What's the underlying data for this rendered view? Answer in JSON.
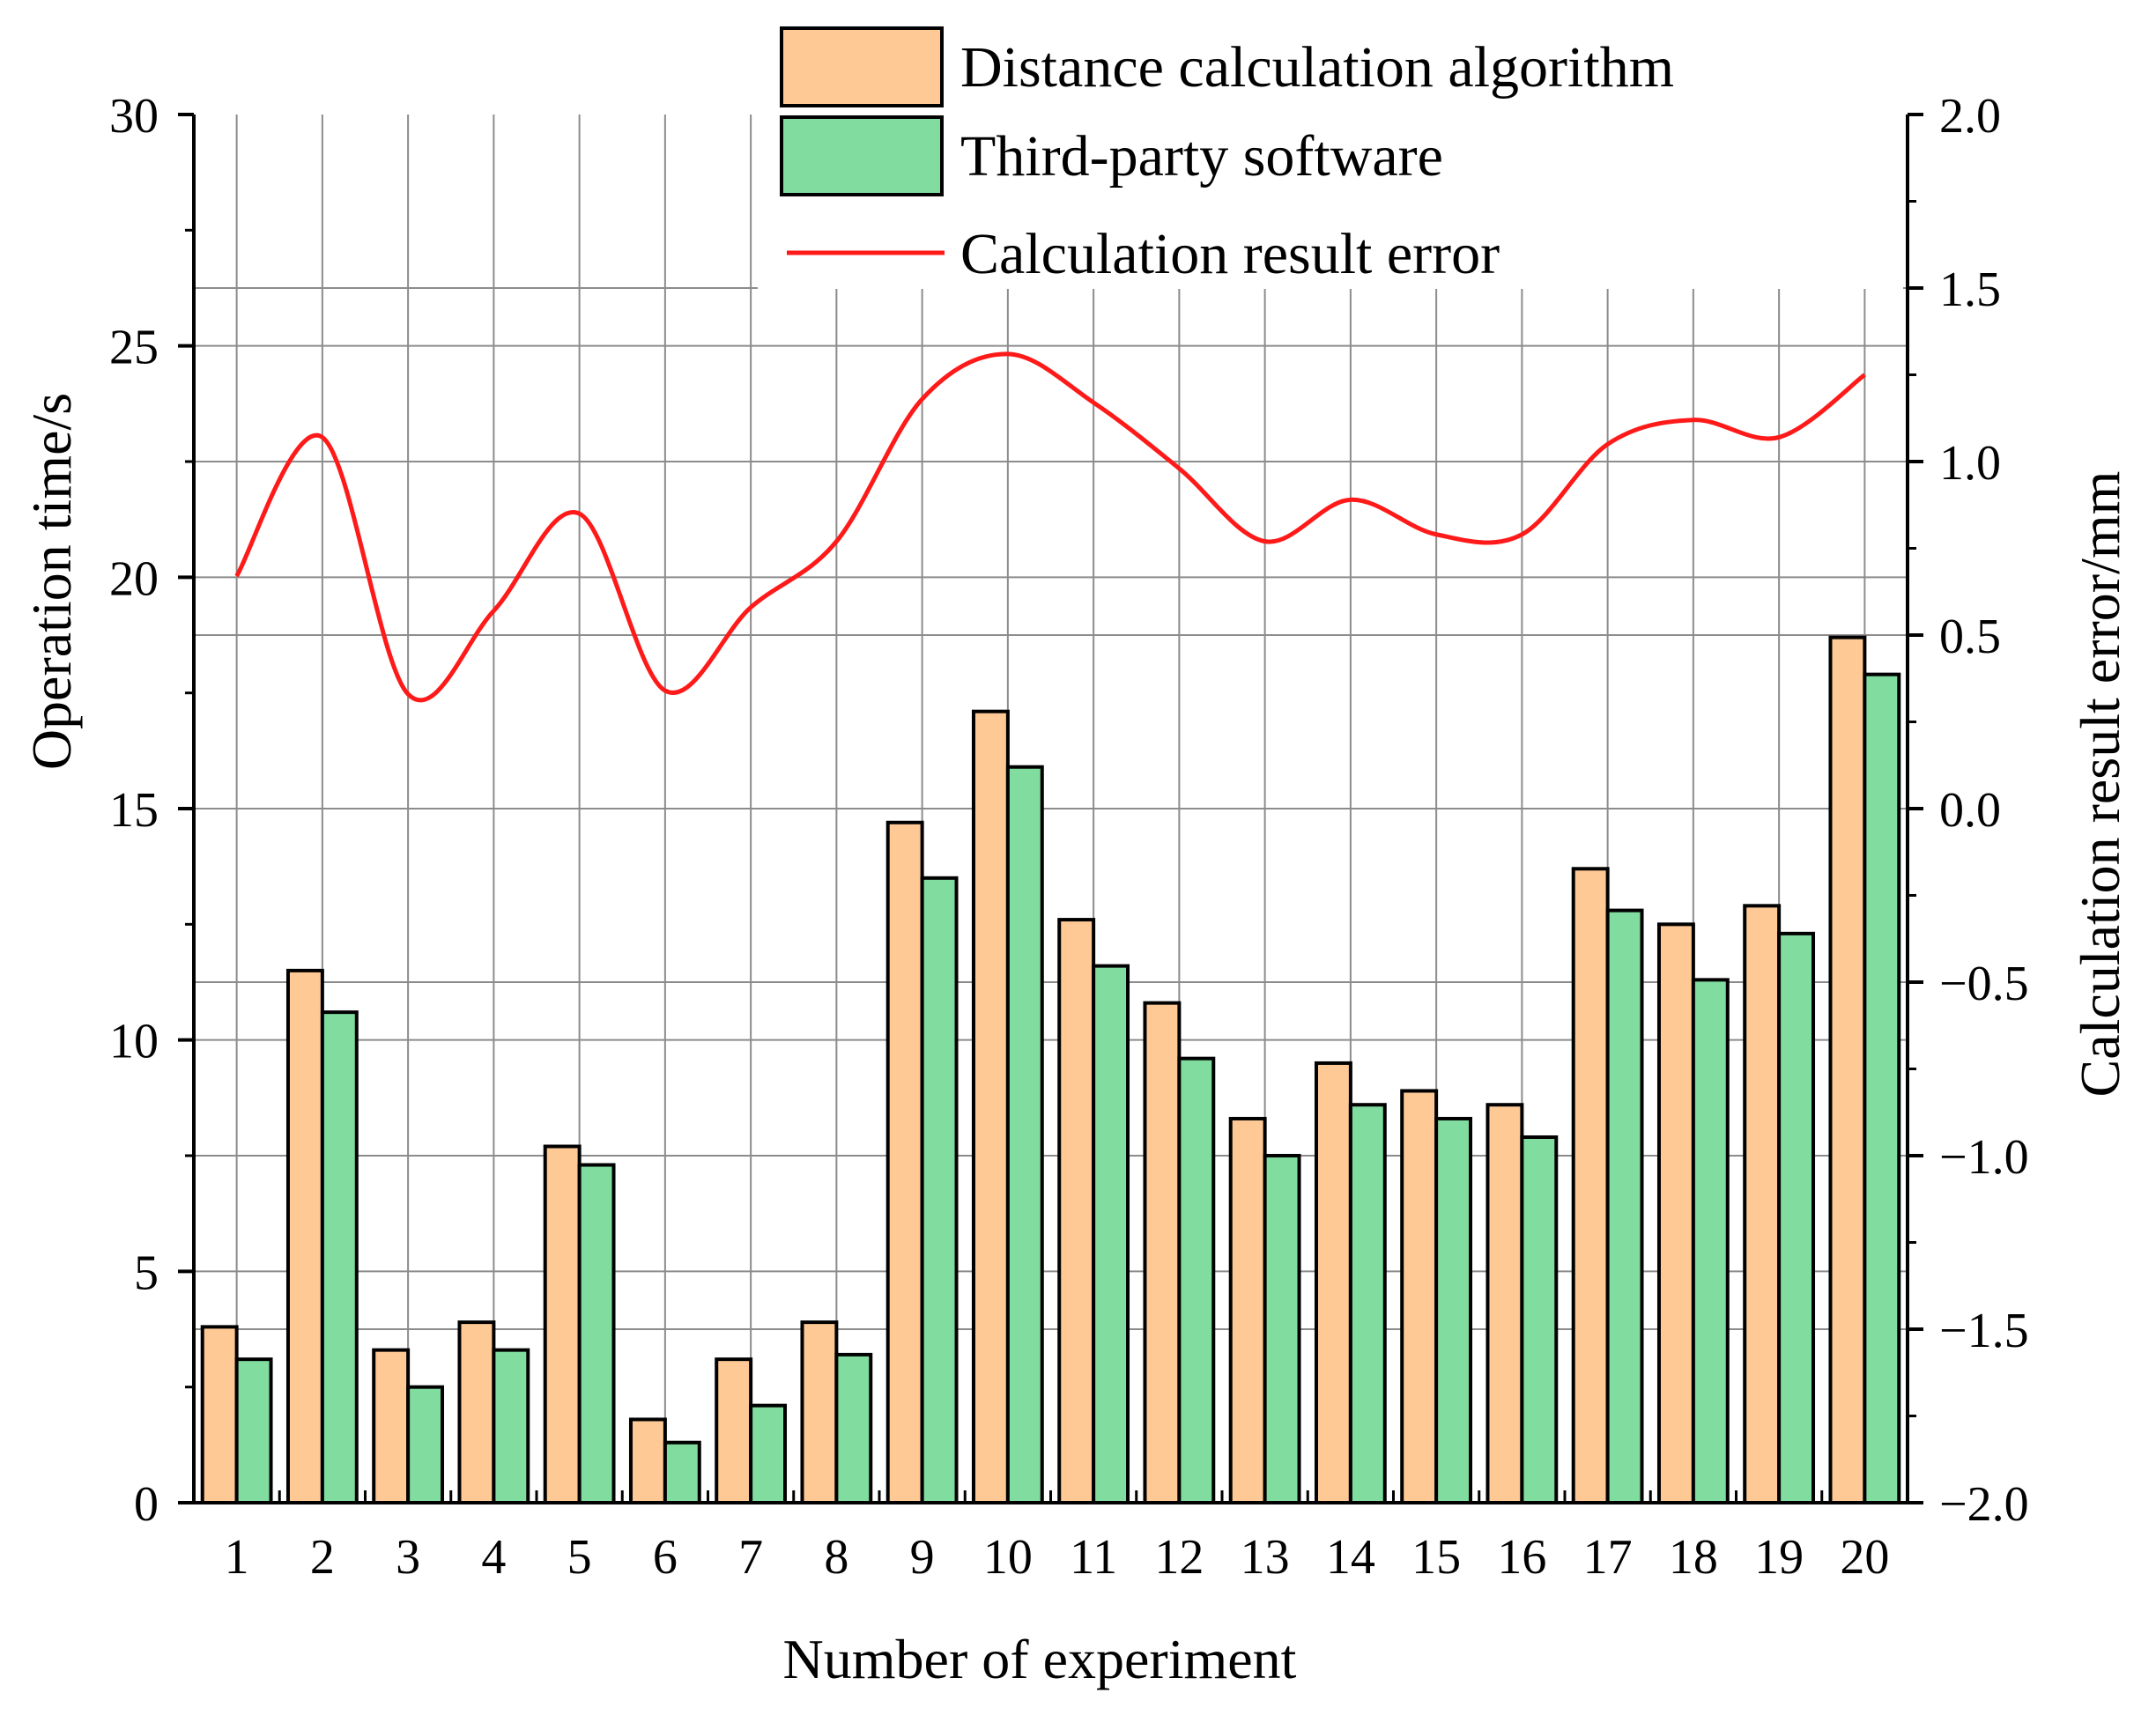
{
  "colors": {
    "series_a": "#FFC996",
    "series_b": "#80DC9F",
    "error_line": "#FF1A1A",
    "grid": "#8C8C8C",
    "axis": "#000000"
  },
  "chart_data": {
    "type": "bar+line",
    "xlabel": "Number of experiment",
    "ylabel": "Operation time/s",
    "ylabel_right": "Calculation result error/mm",
    "categories": [
      "1",
      "2",
      "3",
      "4",
      "5",
      "6",
      "7",
      "8",
      "9",
      "10",
      "11",
      "12",
      "13",
      "14",
      "15",
      "16",
      "17",
      "18",
      "19",
      "20"
    ],
    "ylim": [
      0,
      30
    ],
    "yticks": [
      "0",
      "5",
      "10",
      "15",
      "20",
      "25",
      "30"
    ],
    "ylim_right": [
      -2.0,
      2.0
    ],
    "yticks_right": [
      "−2.0",
      "−1.5",
      "−1.0",
      "−0.5",
      "0.0",
      "0.5",
      "1.0",
      "1.5",
      "2.0"
    ],
    "grid": true,
    "legend_position": "top-right",
    "series": [
      {
        "name": "Distance calculation algorithm",
        "kind": "bar",
        "axis": "left",
        "values": [
          3.8,
          11.5,
          3.3,
          3.9,
          7.7,
          1.8,
          3.1,
          3.9,
          14.7,
          17.1,
          12.6,
          10.8,
          8.3,
          9.5,
          8.9,
          8.6,
          13.7,
          12.5,
          12.9,
          18.7
        ]
      },
      {
        "name": "Third-party software",
        "kind": "bar",
        "axis": "left",
        "values": [
          3.1,
          10.6,
          2.5,
          3.3,
          7.3,
          1.3,
          2.1,
          3.2,
          13.5,
          15.9,
          11.6,
          9.6,
          7.5,
          8.6,
          8.3,
          7.9,
          12.8,
          11.3,
          12.3,
          17.9
        ]
      },
      {
        "name": "Calculation result error",
        "kind": "line",
        "axis": "right",
        "values": [
          0.67,
          1.07,
          0.33,
          0.57,
          0.85,
          0.34,
          0.58,
          0.77,
          1.18,
          1.31,
          1.17,
          0.98,
          0.77,
          0.89,
          0.79,
          0.79,
          1.05,
          1.12,
          1.07,
          1.25
        ]
      }
    ]
  }
}
